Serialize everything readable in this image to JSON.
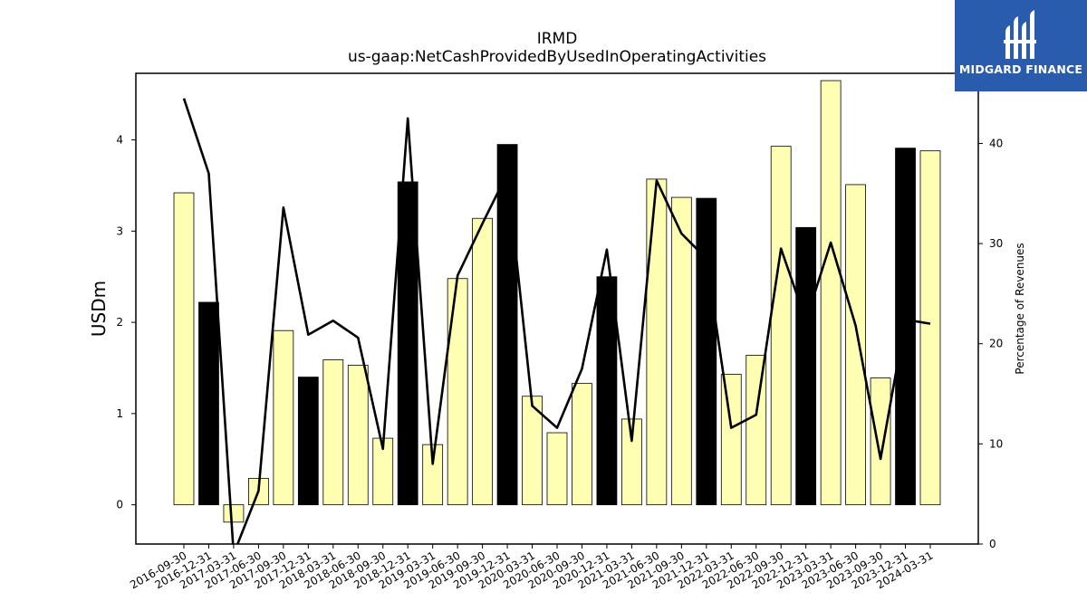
{
  "chart_data": {
    "type": "bar",
    "title": "IRMD",
    "subtitle": "us-gaap:NetCashProvidedByUsedInOperatingActivities",
    "ylabel": "USDm",
    "y2label": "Percentage of Revenues",
    "categories": [
      "2016-09-30",
      "2016-12-31",
      "2017-03-31",
      "2017-06-30",
      "2017-09-30",
      "2017-12-31",
      "2018-03-31",
      "2018-06-30",
      "2018-09-30",
      "2018-12-31",
      "2019-03-31",
      "2019-06-30",
      "2019-09-30",
      "2019-12-31",
      "2020-03-31",
      "2020-06-30",
      "2020-09-30",
      "2020-12-31",
      "2021-03-31",
      "2021-06-30",
      "2021-09-30",
      "2021-12-31",
      "2022-03-31",
      "2022-06-30",
      "2022-09-30",
      "2022-12-31",
      "2023-03-31",
      "2023-06-30",
      "2023-09-30",
      "2023-12-31",
      "2024-03-31"
    ],
    "series": [
      {
        "values": [
          3.42,
          2.22,
          -0.19,
          0.29,
          1.91,
          1.4,
          1.59,
          1.53,
          0.73,
          3.54,
          0.66,
          2.48,
          3.14,
          3.95,
          1.19,
          0.79,
          1.33,
          2.5,
          0.94,
          3.57,
          3.37,
          3.36,
          1.43,
          1.64,
          3.93,
          3.04,
          4.65,
          3.51,
          1.39,
          3.91,
          3.88
        ],
        "colors": [
          "#ffffb3",
          "#000000",
          "#ffffb3",
          "#ffffb3",
          "#ffffb3",
          "#000000",
          "#ffffb3",
          "#ffffb3",
          "#ffffb3",
          "#000000",
          "#ffffb3",
          "#ffffb3",
          "#ffffb3",
          "#000000",
          "#ffffb3",
          "#ffffb3",
          "#ffffb3",
          "#000000",
          "#ffffb3",
          "#ffffb3",
          "#ffffb3",
          "#000000",
          "#ffffb3",
          "#ffffb3",
          "#ffffb3",
          "#000000",
          "#ffffb3",
          "#ffffb3",
          "#ffffb3",
          "#000000",
          "#ffffb3"
        ]
      },
      {
        "type": "line",
        "axis": "right",
        "values": [
          44.5,
          37.0,
          -1.0,
          5.3,
          33.6,
          20.9,
          22.3,
          20.6,
          9.5,
          42.5,
          8.0,
          26.8,
          32.0,
          37.0,
          13.8,
          11.6,
          17.5,
          29.4,
          10.3,
          36.3,
          31.0,
          28.5,
          11.6,
          12.9,
          29.5,
          22.3,
          30.1,
          21.8,
          8.5,
          22.4,
          22.0
        ]
      }
    ],
    "ylim": [
      -0.43,
      4.73
    ],
    "y2lim": [
      0,
      47
    ],
    "yticks": [
      "0",
      "1",
      "2",
      "3",
      "4"
    ],
    "y2ticks": [
      "0",
      "10",
      "20",
      "30",
      "40"
    ],
    "bar_edge_color": "#000000",
    "line_color": "#000000",
    "grid": false
  },
  "logo": {
    "name": "MIDGARD FINANCE",
    "background": "#2a5cad",
    "icon": "midgard-logo-icon"
  }
}
